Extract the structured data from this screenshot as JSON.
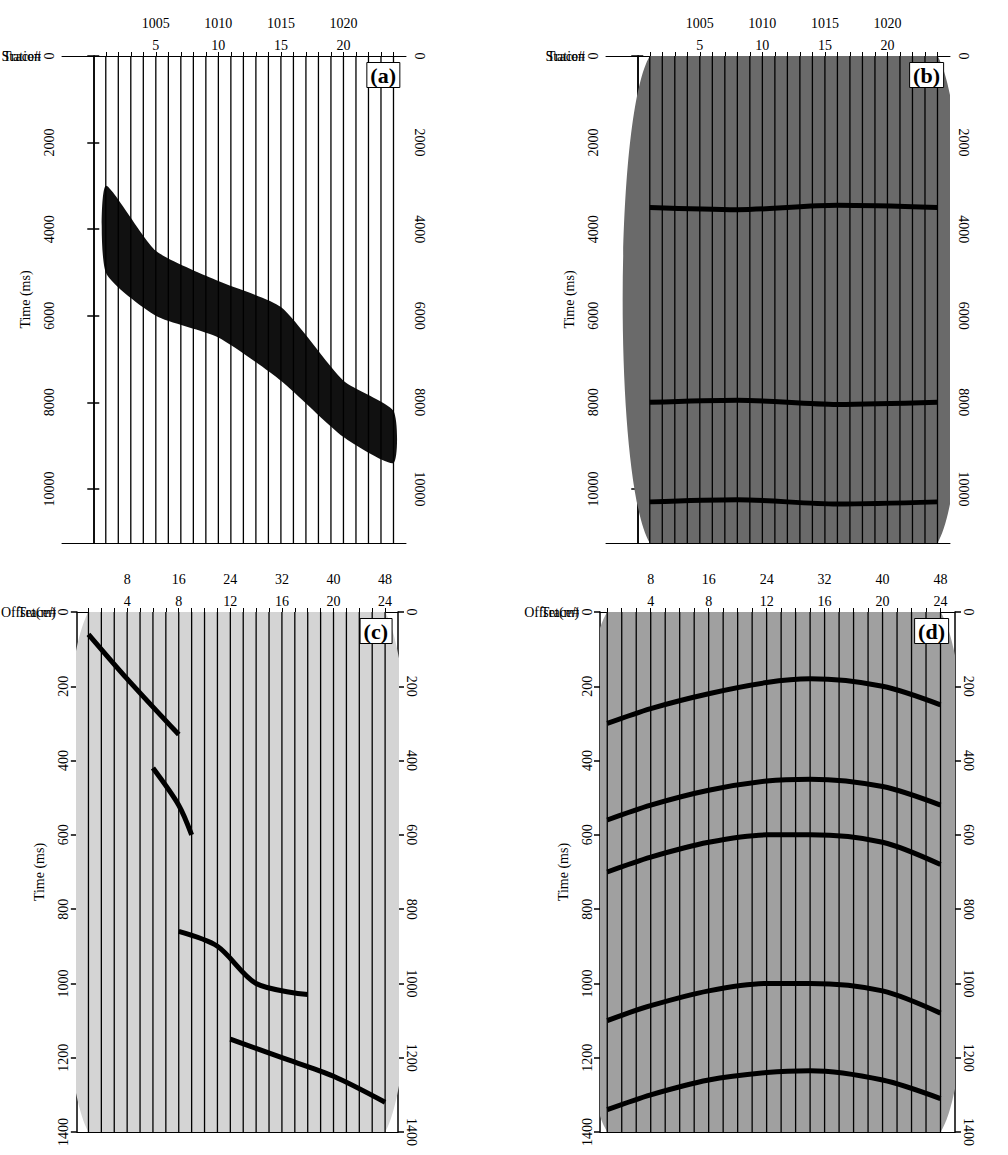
{
  "chart_data": [
    {
      "type": "wiggle",
      "title": "(a)",
      "x_label": "Trace#",
      "y_label": "Time (ms)",
      "xlim": [
        -2.5,
        25
      ],
      "xticks": [
        5,
        10,
        15,
        20
      ],
      "top_axis": {
        "label": "Station",
        "lim": [
          997.5,
          1025
        ],
        "ticks": [
          1005,
          1010,
          1015,
          1020
        ]
      },
      "ylim": [
        0,
        11250
      ],
      "yticks": [
        0,
        2000,
        4000,
        6000,
        8000,
        10000
      ],
      "y2lim": [
        0,
        11250
      ],
      "y2ticks": [
        0,
        2000,
        4000,
        6000,
        8000,
        10000
      ],
      "traces": [
        1,
        2,
        3,
        4,
        5,
        6,
        7,
        8,
        9,
        10,
        11,
        12,
        13,
        14,
        15,
        16,
        17,
        18,
        19,
        20,
        21,
        22,
        23,
        24
      ],
      "bands": [
        {
          "color": "#111111",
          "x": [
            1,
            5,
            10,
            15,
            20,
            24
          ],
          "top": [
            3000,
            4500,
            5200,
            5800,
            7500,
            8200
          ],
          "bottom": [
            5000,
            6000,
            6500,
            7500,
            8800,
            9400
          ]
        }
      ],
      "events": []
    },
    {
      "type": "wiggle",
      "title": "(b)",
      "x_label": "Trace#",
      "y_label": "Time (ms)",
      "xlim": [
        -2.5,
        25
      ],
      "xticks": [
        5,
        10,
        15,
        20
      ],
      "top_axis": {
        "label": "Station",
        "lim": [
          997.5,
          1025
        ],
        "ticks": [
          1005,
          1010,
          1015,
          1020
        ]
      },
      "ylim": [
        0,
        11250
      ],
      "yticks": [
        0,
        2000,
        4000,
        6000,
        8000,
        10000
      ],
      "y2lim": [
        0,
        11250
      ],
      "y2ticks": [
        0,
        2000,
        4000,
        6000,
        8000,
        10000
      ],
      "traces": [
        1,
        2,
        3,
        4,
        5,
        6,
        7,
        8,
        9,
        10,
        11,
        12,
        13,
        14,
        15,
        16,
        17,
        18,
        19,
        20,
        21,
        22,
        23,
        24
      ],
      "bands": [
        {
          "color": "#6a6a6a",
          "x": [
            1,
            24
          ],
          "top": [
            0,
            0
          ],
          "bottom": [
            11250,
            11250
          ]
        }
      ],
      "events": [
        {
          "color": "#000000",
          "x": [
            1,
            8,
            16,
            24
          ],
          "values": [
            3500,
            3550,
            3450,
            3500
          ]
        },
        {
          "color": "#000000",
          "x": [
            1,
            8,
            16,
            24
          ],
          "values": [
            8000,
            7950,
            8050,
            8000
          ]
        },
        {
          "color": "#000000",
          "x": [
            1,
            8,
            16,
            24
          ],
          "values": [
            10300,
            10250,
            10350,
            10300
          ]
        }
      ]
    },
    {
      "type": "wiggle",
      "title": "(c)",
      "x_label": "Trace#",
      "y_label": "Time (ms)",
      "xlim": [
        0.1,
        25
      ],
      "xticks": [
        4,
        8,
        12,
        16,
        20,
        24
      ],
      "top_axis": {
        "label": "Offset(m)",
        "lim": [
          0.2,
          50
        ],
        "ticks": [
          8,
          16,
          24,
          32,
          40,
          48
        ]
      },
      "ylim": [
        0,
        1400
      ],
      "yticks": [
        0,
        200,
        400,
        600,
        800,
        1000,
        1200,
        1400
      ],
      "y2lim": [
        0,
        1400
      ],
      "y2ticks": [
        0,
        200,
        400,
        600,
        800,
        1000,
        1200,
        1400
      ],
      "traces": [
        1,
        2,
        3,
        4,
        5,
        6,
        7,
        8,
        9,
        10,
        11,
        12,
        13,
        14,
        15,
        16,
        17,
        18,
        19,
        20,
        21,
        22,
        23,
        24
      ],
      "bands": [
        {
          "color": "#d4d4d4",
          "x": [
            1,
            24
          ],
          "top": [
            0,
            0
          ],
          "bottom": [
            1400,
            1400
          ]
        }
      ],
      "events": [
        {
          "color": "#000000",
          "x": [
            1,
            4,
            8
          ],
          "values": [
            60,
            180,
            330
          ]
        },
        {
          "color": "#000000",
          "x": [
            6,
            8,
            9
          ],
          "values": [
            420,
            520,
            600
          ]
        },
        {
          "color": "#000000",
          "x": [
            8,
            11,
            14,
            18
          ],
          "values": [
            860,
            900,
            1000,
            1030
          ]
        },
        {
          "color": "#000000",
          "x": [
            12,
            16,
            20,
            24
          ],
          "values": [
            1150,
            1200,
            1250,
            1320
          ]
        }
      ]
    },
    {
      "type": "wiggle",
      "title": "(d)",
      "x_label": "Trace#",
      "y_label": "Time (ms)",
      "xlim": [
        0.5,
        25
      ],
      "xticks": [
        4,
        8,
        12,
        16,
        20,
        24
      ],
      "top_axis": {
        "label": "Offset(m)",
        "lim": [
          1,
          50
        ],
        "ticks": [
          8,
          16,
          24,
          32,
          40,
          48
        ]
      },
      "ylim": [
        0,
        1400
      ],
      "yticks": [
        0,
        200,
        400,
        600,
        800,
        1000,
        1200,
        1400
      ],
      "y2lim": [
        0,
        1400
      ],
      "y2ticks": [
        0,
        200,
        400,
        600,
        800,
        1000,
        1200,
        1400
      ],
      "traces": [
        1,
        2,
        3,
        4,
        5,
        6,
        7,
        8,
        9,
        10,
        11,
        12,
        13,
        14,
        15,
        16,
        17,
        18,
        19,
        20,
        21,
        22,
        23,
        24
      ],
      "bands": [
        {
          "color": "#a0a0a0",
          "x": [
            1,
            24
          ],
          "top": [
            0,
            0
          ],
          "bottom": [
            1400,
            1400
          ]
        }
      ],
      "events": [
        {
          "color": "#000000",
          "x": [
            1,
            4,
            8,
            12,
            15,
            20,
            24
          ],
          "values": [
            300,
            260,
            220,
            190,
            180,
            200,
            250
          ]
        },
        {
          "color": "#000000",
          "x": [
            1,
            4,
            8,
            12,
            15,
            20,
            24
          ],
          "values": [
            560,
            520,
            480,
            455,
            450,
            470,
            520
          ]
        },
        {
          "color": "#000000",
          "x": [
            1,
            4,
            8,
            12,
            15,
            20,
            24
          ],
          "values": [
            700,
            660,
            620,
            600,
            600,
            620,
            680
          ]
        },
        {
          "color": "#000000",
          "x": [
            1,
            4,
            8,
            12,
            15,
            20,
            24
          ],
          "values": [
            1100,
            1060,
            1020,
            1000,
            1000,
            1020,
            1080
          ]
        },
        {
          "color": "#000000",
          "x": [
            1,
            4,
            8,
            12,
            15,
            20,
            24
          ],
          "values": [
            1340,
            1300,
            1260,
            1240,
            1235,
            1260,
            1310
          ]
        }
      ]
    }
  ]
}
